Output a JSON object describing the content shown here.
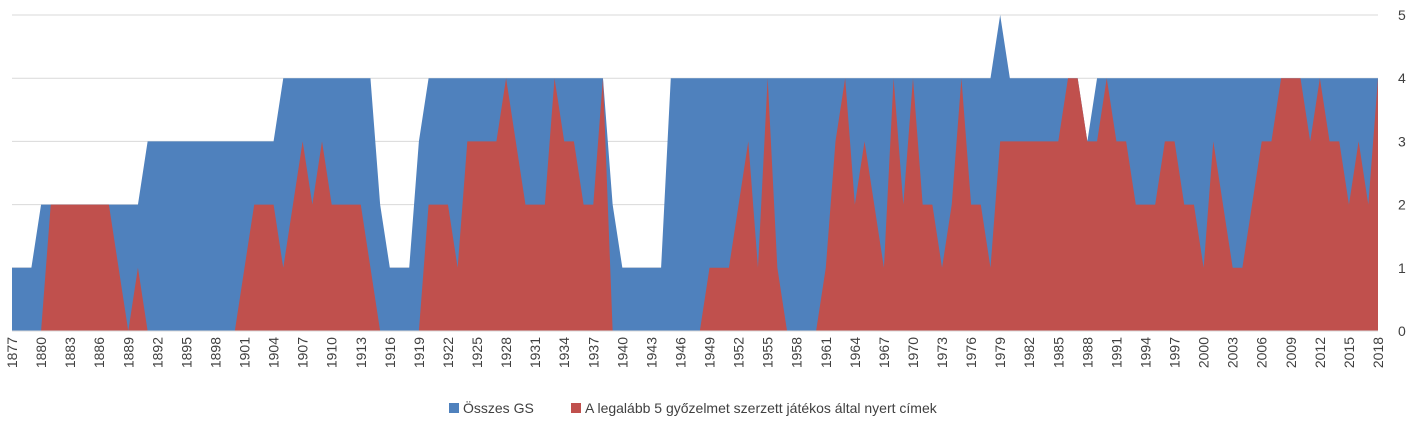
{
  "chart_data": {
    "type": "area",
    "x_start": 1877,
    "x_end": 2018,
    "x_tick_labels": [
      "1877",
      "1880",
      "1883",
      "1886",
      "1889",
      "1892",
      "1895",
      "1898",
      "1901",
      "1904",
      "1907",
      "1910",
      "1913",
      "1916",
      "1919",
      "1922",
      "1925",
      "1928",
      "1931",
      "1934",
      "1937",
      "1940",
      "1943",
      "1946",
      "1949",
      "1952",
      "1955",
      "1958",
      "1961",
      "1964",
      "1967",
      "1970",
      "1973",
      "1976",
      "1979",
      "1982",
      "1985",
      "1988",
      "1991",
      "1994",
      "1997",
      "2000",
      "2003",
      "2006",
      "2009",
      "2012",
      "2015",
      "2018"
    ],
    "ylim": [
      0,
      5
    ],
    "y_tick_labels": [
      "0",
      "1",
      "2",
      "3",
      "4",
      "5"
    ],
    "grid": true,
    "y_axis_side": "right",
    "legend_position": "bottom",
    "series": [
      {
        "name": "Összes GS",
        "color": "#4f81bd",
        "values": [
          1,
          1,
          1,
          2,
          2,
          2,
          2,
          2,
          2,
          2,
          2,
          2,
          2,
          2,
          3,
          3,
          3,
          3,
          3,
          3,
          3,
          3,
          3,
          3,
          3,
          3,
          3,
          3,
          4,
          4,
          4,
          4,
          4,
          4,
          4,
          4,
          4,
          4,
          2,
          1,
          1,
          1,
          3,
          4,
          4,
          4,
          4,
          4,
          4,
          4,
          4,
          4,
          4,
          4,
          4,
          4,
          4,
          4,
          4,
          4,
          4,
          4,
          2,
          1,
          1,
          1,
          1,
          1,
          4,
          4,
          4,
          4,
          4,
          4,
          4,
          4,
          4,
          4,
          4,
          4,
          4,
          4,
          4,
          4,
          4,
          4,
          4,
          4,
          4,
          4,
          4,
          4,
          4,
          4,
          4,
          4,
          4,
          4,
          4,
          4,
          4,
          4,
          5,
          4,
          4,
          4,
          4,
          4,
          4,
          4,
          4,
          3,
          4,
          4,
          4,
          4,
          4,
          4,
          4,
          4,
          4,
          4,
          4,
          4,
          4,
          4,
          4,
          4,
          4,
          4,
          4,
          4,
          4,
          4,
          4,
          4,
          4,
          4,
          4,
          4,
          4,
          4
        ]
      },
      {
        "name": "A legalább 5 győzelmet szerzett játékos által nyert címek",
        "color": "#c0504d",
        "values": [
          0,
          0,
          0,
          0,
          2,
          2,
          2,
          2,
          2,
          2,
          2,
          1,
          0,
          1,
          0,
          0,
          0,
          0,
          0,
          0,
          0,
          0,
          0,
          0,
          1,
          2,
          2,
          2,
          1,
          2,
          3,
          2,
          3,
          2,
          2,
          2,
          2,
          1,
          0,
          0,
          0,
          0,
          0,
          2,
          2,
          2,
          1,
          3,
          3,
          3,
          3,
          4,
          3,
          2,
          2,
          2,
          4,
          3,
          3,
          2,
          2,
          4,
          0,
          0,
          0,
          0,
          0,
          0,
          0,
          0,
          0,
          0,
          1,
          1,
          1,
          2,
          3,
          1,
          4,
          1,
          0,
          0,
          0,
          0,
          1,
          3,
          4,
          2,
          3,
          2,
          1,
          4,
          2,
          4,
          2,
          2,
          1,
          2,
          4,
          2,
          2,
          1,
          3,
          3,
          3,
          3,
          3,
          3,
          3,
          4,
          4,
          3,
          3,
          4,
          3,
          3,
          2,
          2,
          2,
          3,
          3,
          2,
          2,
          1,
          3,
          2,
          1,
          1,
          2,
          3,
          3,
          4,
          4,
          4,
          3,
          4,
          3,
          3,
          2,
          3,
          2,
          4
        ]
      }
    ]
  }
}
